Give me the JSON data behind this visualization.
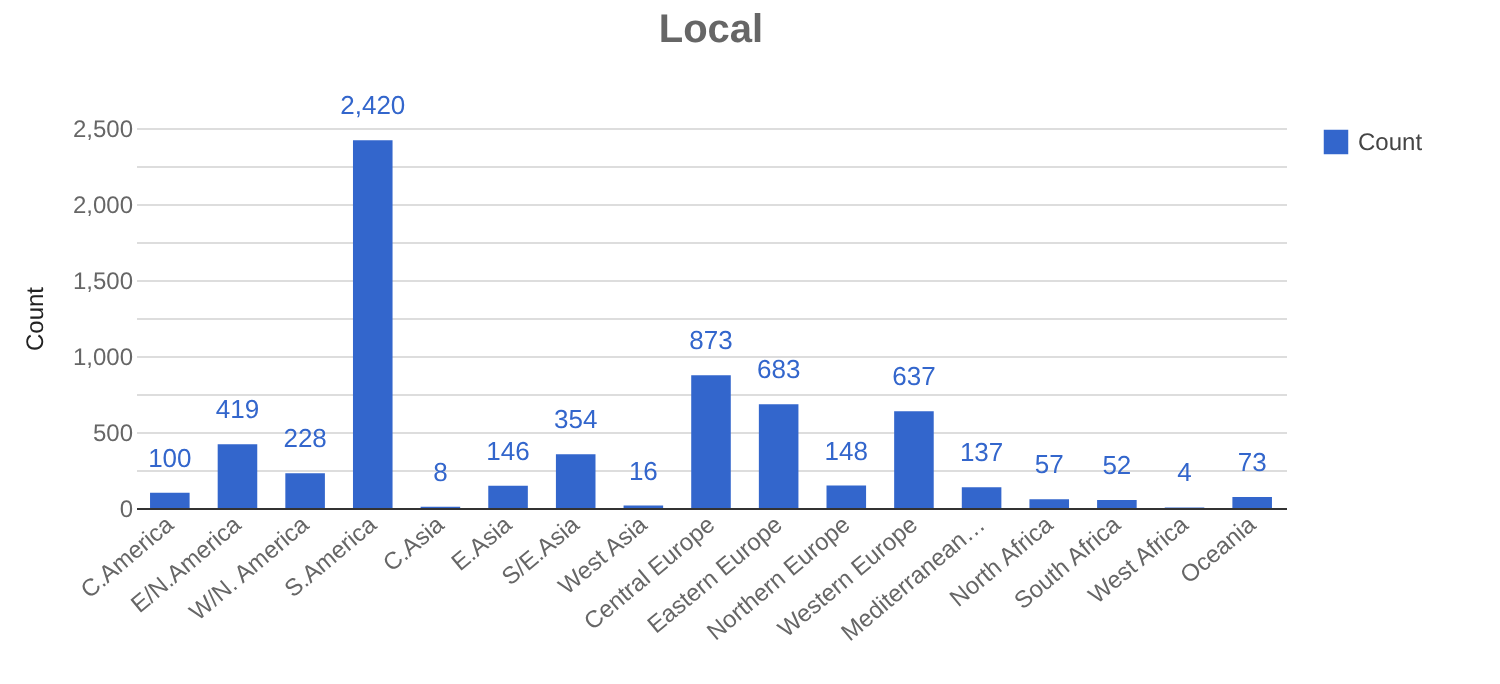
{
  "chart_data": {
    "type": "bar",
    "title": "Local",
    "ylabel": "Count",
    "categories": [
      "C.America",
      "E/N.America",
      "W/N. America",
      "S.America",
      "C.Asia",
      "E.Asia",
      "S/E.Asia",
      "West Asia",
      "Central Europe",
      "Eastern Europe",
      "Northern Europe",
      "Western Europe",
      "Mediterranean…",
      "North Africa",
      "South Africa",
      "West Africa",
      "Oceania"
    ],
    "series": [
      {
        "name": "Count",
        "color": "#3366cc",
        "values": [
          100,
          419,
          228,
          2420,
          8,
          146,
          354,
          16,
          873,
          683,
          148,
          637,
          137,
          57,
          52,
          4,
          73
        ],
        "value_labels": [
          "100",
          "419",
          "228",
          "2,420",
          "8",
          "146",
          "354",
          "16",
          "873",
          "683",
          "148",
          "637",
          "137",
          "57",
          "52",
          "4",
          "73"
        ]
      }
    ],
    "ylim": [
      0,
      2500
    ],
    "yticks": [
      0,
      {
        "value": 250,
        "label": null
      },
      500,
      {
        "value": 750,
        "label": null
      },
      {
        "value": 1000,
        "label": "1,000"
      },
      {
        "value": 1250,
        "label": null
      },
      {
        "value": 1500,
        "label": "1,500"
      },
      {
        "value": 1750,
        "label": null
      },
      {
        "value": 2000,
        "label": "2,000"
      },
      {
        "value": 2250,
        "label": null
      },
      {
        "value": 2500,
        "label": "2,500"
      }
    ],
    "grid": true,
    "legend": "top right"
  }
}
